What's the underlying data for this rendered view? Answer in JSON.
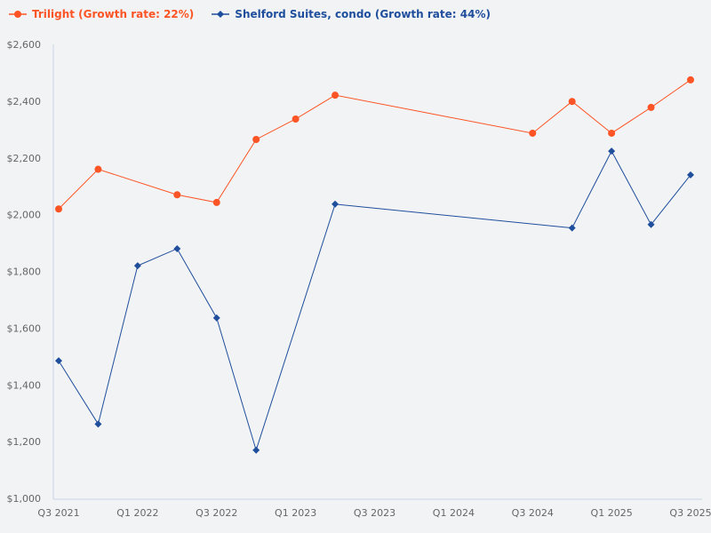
{
  "chart_data": {
    "type": "line",
    "title": "",
    "xlabel": "",
    "ylabel": "",
    "ylim": [
      1000,
      2600
    ],
    "yticks": [
      "$1,000",
      "$1,200",
      "$1,400",
      "$1,600",
      "$1,800",
      "$2,000",
      "$2,200",
      "$2,400",
      "$2,600"
    ],
    "ytick_values": [
      1000,
      1200,
      1400,
      1600,
      1800,
      2000,
      2200,
      2400,
      2600
    ],
    "x": [
      "Q3 2021",
      "Q4 2021",
      "Q1 2022",
      "Q2 2022",
      "Q3 2022",
      "Q4 2022",
      "Q1 2023",
      "Q2 2023",
      "Q3 2023",
      "Q4 2023",
      "Q1 2024",
      "Q2 2024",
      "Q3 2024",
      "Q4 2024",
      "Q1 2025",
      "Q2 2025",
      "Q3 2025"
    ],
    "xticks": [
      "Q3 2021",
      "Q1 2022",
      "Q3 2022",
      "Q1 2023",
      "Q3 2023",
      "Q1 2024",
      "Q3 2024",
      "Q1 2025",
      "Q3 2025"
    ],
    "grid": false,
    "legend_position": "top-left",
    "series": [
      {
        "name": "Trilight (Growth rate: 22%)",
        "color": "#fc5424",
        "marker": "circle",
        "values": [
          2020,
          2160,
          null,
          2070,
          2043,
          2265,
          2337,
          2421,
          null,
          null,
          null,
          null,
          2287,
          2399,
          2287,
          2378,
          2475
        ]
      },
      {
        "name": "Shelford Suites, condo (Growth rate: 44%)",
        "color": "#1f4e9c",
        "marker": "diamond",
        "values": [
          1485,
          1262,
          1820,
          1880,
          1636,
          1170,
          null,
          2037,
          null,
          null,
          null,
          null,
          null,
          1953,
          2224,
          1965,
          2140
        ]
      }
    ]
  }
}
